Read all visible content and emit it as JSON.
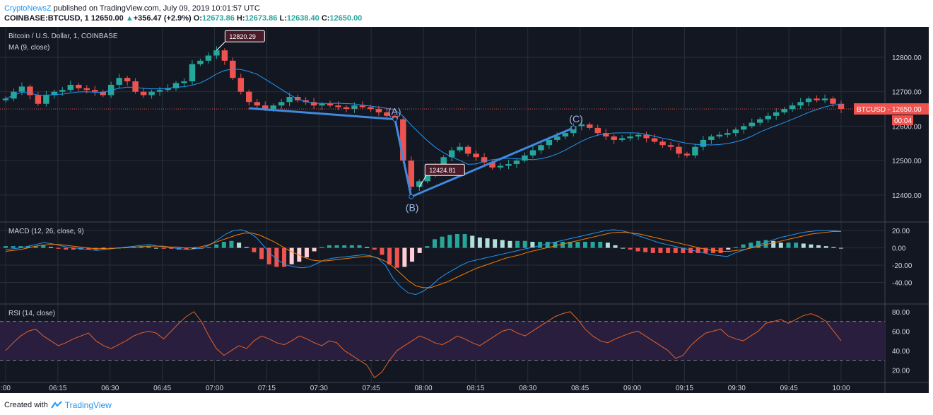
{
  "header": {
    "publisher": "CryptoNewsZ",
    "published_text": " published on TradingView.com, July 09, 2019 10:01:57 UTC",
    "symbol": "COINBASE:BTCUSD, 1",
    "last": "12650.00",
    "change_arrow": "▲",
    "change": "+356.47 (+2.9%)",
    "o_label": "O:",
    "o": "12673.86",
    "h_label": "H:",
    "h": "12673.86",
    "l_label": "L:",
    "l": "12638.40",
    "c_label": "C:",
    "c": "12650.00"
  },
  "footer": {
    "created_with": "Created with",
    "brand": "TradingView"
  },
  "colors": {
    "background": "#131722",
    "up": "#26a69a",
    "down": "#ef5350",
    "ma": "#2196f3",
    "signal": "#f57c00",
    "rsi": "#e0632a",
    "pattern": "#3f8ae0",
    "rsi_band": "#2a1e3e",
    "price_tag": "#ef5350"
  },
  "chart_data": [
    {
      "type": "candlestick",
      "title": "Bitcoin / U.S. Dollar, 1, COINBASE",
      "indicator": "MA (9, close)",
      "ylim": [
        12330,
        12880
      ],
      "y_ticks": [
        "12800.00",
        "12700.00",
        "12600.00",
        "12500.00",
        "12400.00"
      ],
      "x_ticks": [
        ":00",
        "06:15",
        "06:30",
        "06:45",
        "07:00",
        "07:15",
        "07:30",
        "07:45",
        "08:00",
        "08:15",
        "08:30",
        "08:45",
        "09:00",
        "09:15",
        "09:30",
        "09:45",
        "10:00"
      ],
      "close_path": [
        12680,
        12700,
        12715,
        12690,
        12665,
        12690,
        12700,
        12705,
        12720,
        12710,
        12705,
        12700,
        12690,
        12720,
        12740,
        12730,
        12700,
        12690,
        12700,
        12705,
        12710,
        12725,
        12730,
        12780,
        12790,
        12805,
        12820,
        12790,
        12740,
        12700,
        12670,
        12660,
        12650,
        12660,
        12670,
        12685,
        12675,
        12670,
        12660,
        12665,
        12660,
        12655,
        12650,
        12660,
        12655,
        12650,
        12640,
        12630,
        12620,
        12500,
        12424,
        12440,
        12460,
        12480,
        12510,
        12530,
        12540,
        12520,
        12510,
        12495,
        12480,
        12485,
        12490,
        12500,
        12515,
        12530,
        12545,
        12560,
        12570,
        12580,
        12600,
        12605,
        12595,
        12580,
        12570,
        12560,
        12565,
        12570,
        12575,
        12565,
        12555,
        12545,
        12540,
        12520,
        12515,
        12540,
        12560,
        12570,
        12575,
        12580,
        12590,
        12600,
        12610,
        12620,
        12630,
        12640,
        12650,
        12660,
        12670,
        12680,
        12675,
        12680,
        12665,
        12650
      ],
      "price_label": "BTCUSD",
      "price_value": "12650.00",
      "countdown": "00:04",
      "annotations": {
        "high": "12820.29",
        "low": "12424.81",
        "point_a": "(A)",
        "point_b": "(B)",
        "point_c": "(C)"
      }
    },
    {
      "type": "bar",
      "title": "MACD (12, 26, close, 9)",
      "ylim": [
        -60,
        25
      ],
      "y_ticks": [
        "20.00",
        "0.00",
        "-20.00",
        "-40.00"
      ],
      "macd": [
        -2,
        -1,
        0,
        2,
        4,
        6,
        5,
        3,
        1,
        0,
        -1,
        -2,
        -3,
        -2,
        -1,
        0,
        1,
        2,
        3,
        4,
        2,
        1,
        0,
        -1,
        -2,
        -1,
        0,
        4,
        10,
        16,
        20,
        21,
        18,
        12,
        2,
        -8,
        -15,
        -20,
        -22,
        -23,
        -22,
        -18,
        -14,
        -12,
        -11,
        -10,
        -9,
        -8,
        -9,
        -12,
        -20,
        -35,
        -45,
        -52,
        -54,
        -50,
        -44,
        -36,
        -30,
        -25,
        -20,
        -16,
        -14,
        -12,
        -10,
        -8,
        -6,
        -4,
        -2,
        0,
        2,
        4,
        6,
        8,
        10,
        12,
        14,
        16,
        18,
        20,
        21,
        20,
        18,
        15,
        12,
        9,
        6,
        4,
        2,
        0,
        -2,
        -4,
        -6,
        -8,
        -9,
        -10,
        -6,
        -3,
        0,
        3,
        6,
        9,
        12,
        14,
        16,
        18,
        19,
        20,
        20,
        20,
        19
      ],
      "signal": [
        -4,
        -3,
        -2,
        0,
        2,
        3,
        4,
        4,
        3,
        2,
        1,
        0,
        -1,
        -1,
        -1,
        0,
        0,
        1,
        1,
        2,
        2,
        2,
        1,
        1,
        0,
        0,
        1,
        3,
        6,
        9,
        12,
        15,
        17,
        17,
        15,
        11,
        7,
        2,
        -3,
        -7,
        -11,
        -14,
        -15,
        -15,
        -14,
        -13,
        -12,
        -11,
        -10,
        -10,
        -12,
        -16,
        -22,
        -30,
        -38,
        -44,
        -46,
        -46,
        -43,
        -40,
        -36,
        -32,
        -28,
        -24,
        -21,
        -18,
        -15,
        -12,
        -10,
        -8,
        -5,
        -3,
        -1,
        1,
        3,
        5,
        7,
        9,
        11,
        13,
        15,
        17,
        18,
        18,
        17,
        16,
        14,
        12,
        10,
        8,
        6,
        4,
        2,
        0,
        -2,
        -3,
        -4,
        -4,
        -3,
        -2,
        0,
        2,
        4,
        6,
        8,
        10,
        12,
        14,
        16,
        17,
        18,
        19,
        19
      ],
      "hist": [
        2,
        2,
        2,
        2,
        2,
        3,
        1,
        -1,
        -2,
        -2,
        -2,
        -2,
        -2,
        -1,
        0,
        0,
        1,
        1,
        2,
        2,
        0,
        -1,
        -1,
        -2,
        -2,
        -1,
        -1,
        1,
        4,
        7,
        8,
        6,
        1,
        -5,
        -13,
        -19,
        -22,
        -22,
        -19,
        -16,
        -11,
        -4,
        1,
        3,
        3,
        3,
        3,
        3,
        1,
        -2,
        -8,
        -19,
        -23,
        -22,
        -16,
        -6,
        2,
        10,
        13,
        15,
        16,
        16,
        14,
        12,
        11,
        10,
        9,
        8,
        8,
        8,
        7,
        7,
        7,
        7,
        7,
        7,
        7,
        7,
        7,
        7,
        6,
        3,
        0,
        -2,
        -4,
        -5,
        -6,
        -6,
        -6,
        -6,
        -6,
        -6,
        -6,
        -6,
        -6,
        -6,
        -2,
        1,
        4,
        6,
        8,
        9,
        8,
        6,
        6,
        6,
        5,
        4,
        3,
        2,
        1,
        0
      ],
      "legend": []
    },
    {
      "type": "line",
      "title": "RSI (14, close)",
      "ylim": [
        10,
        85
      ],
      "y_ticks": [
        "80.00",
        "60.00",
        "40.00",
        "20.00"
      ],
      "bands": [
        30,
        70
      ],
      "values": [
        40,
        48,
        55,
        60,
        62,
        55,
        50,
        45,
        48,
        52,
        55,
        58,
        50,
        45,
        42,
        46,
        50,
        55,
        58,
        60,
        58,
        52,
        60,
        68,
        75,
        80,
        70,
        55,
        42,
        35,
        40,
        45,
        42,
        50,
        55,
        52,
        48,
        46,
        50,
        55,
        52,
        48,
        45,
        50,
        48,
        40,
        35,
        30,
        25,
        12,
        18,
        30,
        40,
        45,
        50,
        55,
        52,
        48,
        46,
        50,
        55,
        52,
        48,
        45,
        50,
        55,
        60,
        62,
        58,
        55,
        60,
        65,
        70,
        75,
        78,
        80,
        72,
        62,
        55,
        50,
        48,
        52,
        55,
        58,
        60,
        55,
        50,
        45,
        40,
        32,
        35,
        45,
        52,
        58,
        60,
        62,
        55,
        52,
        50,
        55,
        60,
        68,
        70,
        72,
        68,
        72,
        76,
        78,
        75,
        70,
        60,
        50
      ]
    }
  ]
}
